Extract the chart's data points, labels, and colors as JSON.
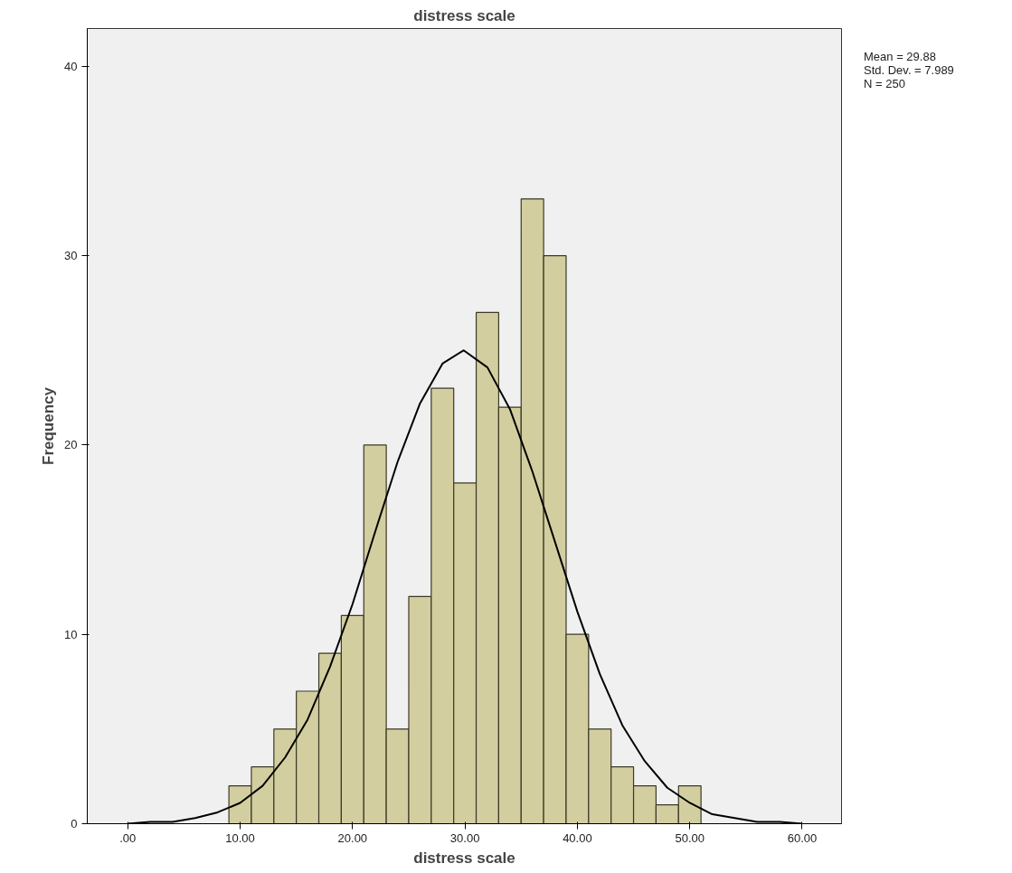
{
  "chart_data": {
    "type": "histogram",
    "title": "distress scale",
    "xlabel": "distress scale",
    "ylabel": "Frequency",
    "annotations": [
      "Mean = 29.88",
      "Std. Dev. = 7.989",
      "N = 250"
    ],
    "xlim": [
      -3.6,
      63.5
    ],
    "ylim": [
      0,
      42
    ],
    "xticks": [
      {
        "value": 0,
        "label": ".00"
      },
      {
        "value": 10,
        "label": "10.00"
      },
      {
        "value": 20,
        "label": "20.00"
      },
      {
        "value": 30,
        "label": "30.00"
      },
      {
        "value": 40,
        "label": "40.00"
      },
      {
        "value": 50,
        "label": "50.00"
      },
      {
        "value": 60,
        "label": "60.00"
      }
    ],
    "yticks": [
      0,
      10,
      20,
      30,
      40
    ],
    "grid": false,
    "series": [
      {
        "color": "#d3ce9f",
        "bins": [
          9,
          11,
          13,
          15,
          17,
          19,
          21,
          23,
          25,
          27,
          29,
          31,
          33,
          35,
          37,
          39,
          41,
          43,
          45,
          47,
          49,
          51
        ],
        "values": [
          2,
          3,
          5,
          7,
          9,
          11,
          20,
          5,
          12,
          23,
          18,
          27,
          22,
          33,
          30,
          10,
          5,
          3,
          2,
          1,
          2
        ]
      },
      {
        "type": "line",
        "color": "#000000",
        "x": [
          0,
          2,
          4,
          6,
          8,
          10,
          12,
          14,
          16,
          18,
          20,
          22,
          24,
          26,
          28,
          29.88,
          32,
          34,
          36,
          38,
          40,
          42,
          44,
          46,
          48,
          50,
          52,
          54,
          56,
          58,
          60
        ],
        "values": [
          0.0,
          0.1,
          0.1,
          0.3,
          0.6,
          1.1,
          2.0,
          3.5,
          5.5,
          8.3,
          11.6,
          15.4,
          19.1,
          22.2,
          24.3,
          25.0,
          24.1,
          21.9,
          18.6,
          14.9,
          11.2,
          7.9,
          5.2,
          3.3,
          1.9,
          1.1,
          0.5,
          0.3,
          0.1,
          0.1,
          0.0
        ]
      }
    ]
  }
}
